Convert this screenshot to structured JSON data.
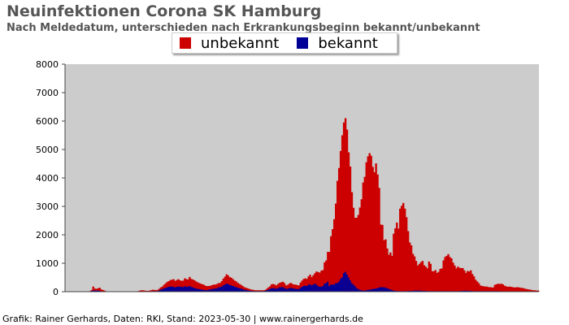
{
  "title": "Neuinfektionen Corona SK Hamburg",
  "subtitle": "Nach Meldedatum, unterschieden nach Erkrankungsbeginn bekannt/unbekannt",
  "credit": "Grafik: Rainer Gerhards, Daten: RKI, Stand: 2023-05-30 | www.rainergerhards.de",
  "legend": {
    "unknown_label": "unbekannt",
    "known_label": "bekannt"
  },
  "colors": {
    "unknown": "#cc0000",
    "known": "#000099",
    "plot_bg": "#cccccc"
  },
  "chart_data": {
    "type": "bar",
    "stacked": true,
    "title": "Neuinfektionen Corona SK Hamburg",
    "subtitle": "Nach Meldedatum, unterschieden nach Erkrankungsbeginn bekannt/unbekannt",
    "ylim": [
      0,
      8000
    ],
    "y_ticks": [
      0,
      1000,
      2000,
      3000,
      4000,
      5000,
      6000,
      7000,
      8000
    ],
    "grid": false,
    "legend_position": "top-center",
    "series": [
      {
        "name": "unbekannt",
        "color": "#cc0000",
        "values": [
          0,
          0,
          0,
          0,
          0,
          0,
          0,
          0,
          0,
          0,
          0,
          0,
          0,
          0,
          0,
          10,
          30,
          140,
          70,
          60,
          80,
          110,
          60,
          50,
          30,
          10,
          5,
          5,
          0,
          0,
          0,
          0,
          0,
          0,
          0,
          0,
          0,
          0,
          0,
          0,
          0,
          0,
          0,
          0,
          5,
          10,
          30,
          40,
          40,
          30,
          20,
          20,
          30,
          40,
          50,
          40,
          40,
          40,
          60,
          80,
          90,
          130,
          160,
          190,
          200,
          230,
          240,
          270,
          230,
          240,
          260,
          220,
          210,
          230,
          280,
          260,
          260,
          320,
          280,
          280,
          270,
          250,
          230,
          210,
          200,
          190,
          180,
          150,
          140,
          130,
          130,
          140,
          150,
          140,
          150,
          150,
          150,
          190,
          240,
          280,
          330,
          300,
          270,
          270,
          240,
          210,
          200,
          170,
          150,
          130,
          110,
          90,
          80,
          70,
          60,
          50,
          40,
          40,
          30,
          30,
          30,
          30,
          30,
          30,
          30,
          50,
          80,
          100,
          140,
          150,
          130,
          120,
          150,
          160,
          170,
          190,
          170,
          120,
          140,
          160,
          170,
          150,
          140,
          150,
          140,
          130,
          190,
          220,
          250,
          260,
          250,
          300,
          340,
          290,
          330,
          370,
          460,
          490,
          500,
          560,
          560,
          750,
          800,
          1050,
          1200,
          1700,
          1950,
          2300,
          2800,
          3600,
          4000,
          4500,
          5000,
          5300,
          5400,
          5100,
          4400,
          4000,
          3200,
          2700,
          2400,
          2480,
          2600,
          2900,
          3200,
          3800,
          4000,
          4500,
          4700,
          4800,
          4700,
          4300,
          4100,
          4400,
          4000,
          3500,
          2200,
          2200,
          1650,
          1700,
          1400,
          1200,
          1300,
          1200,
          2000,
          2200,
          2400,
          2200,
          2900,
          3000,
          3100,
          2900,
          2600,
          2100,
          1700,
          1600,
          1300,
          1200,
          1040,
          880,
          940,
          1000,
          1050,
          900,
          850,
          800,
          1040,
          960,
          700,
          700,
          740,
          640,
          680,
          780,
          800,
          1080,
          1200,
          1240,
          1300,
          1200,
          1150,
          1000,
          900,
          800,
          860,
          820,
          800,
          800,
          720,
          620,
          700,
          680,
          720,
          600,
          520,
          400,
          340,
          280,
          200,
          180,
          170,
          160,
          160,
          140,
          140,
          130,
          130,
          220,
          240,
          260,
          260,
          270,
          250,
          200,
          180,
          160,
          170,
          160,
          150,
          140,
          140,
          150,
          140,
          130,
          120,
          110,
          90,
          80,
          70,
          60,
          50,
          40,
          40,
          30,
          30
        ]
      },
      {
        "name": "bekannt",
        "color": "#000099",
        "values": [
          0,
          0,
          0,
          0,
          0,
          0,
          0,
          0,
          0,
          0,
          0,
          0,
          0,
          0,
          0,
          10,
          30,
          40,
          40,
          40,
          40,
          30,
          20,
          10,
          10,
          5,
          5,
          0,
          0,
          0,
          0,
          0,
          0,
          0,
          0,
          0,
          0,
          0,
          0,
          0,
          0,
          0,
          0,
          0,
          5,
          10,
          10,
          10,
          10,
          10,
          10,
          10,
          10,
          10,
          20,
          20,
          20,
          20,
          40,
          70,
          90,
          110,
          130,
          150,
          170,
          180,
          180,
          170,
          150,
          170,
          180,
          180,
          170,
          160,
          190,
          180,
          170,
          200,
          170,
          150,
          130,
          110,
          100,
          90,
          80,
          70,
          60,
          50,
          60,
          70,
          80,
          90,
          100,
          110,
          120,
          150,
          160,
          180,
          220,
          250,
          280,
          270,
          240,
          220,
          200,
          180,
          160,
          140,
          120,
          110,
          90,
          70,
          60,
          50,
          40,
          30,
          30,
          20,
          20,
          20,
          20,
          20,
          20,
          20,
          30,
          50,
          70,
          90,
          120,
          120,
          120,
          100,
          120,
          150,
          160,
          160,
          130,
          100,
          100,
          120,
          140,
          120,
          110,
          100,
          90,
          90,
          130,
          170,
          200,
          210,
          200,
          240,
          260,
          220,
          250,
          280,
          250,
          200,
          170,
          180,
          200,
          280,
          300,
          350,
          200,
          250,
          250,
          250,
          300,
          300,
          350,
          450,
          500,
          650,
          700,
          600,
          500,
          400,
          300,
          250,
          200,
          120,
          100,
          60,
          50,
          40,
          40,
          50,
          60,
          70,
          80,
          90,
          100,
          110,
          120,
          150,
          160,
          150,
          160,
          140,
          120,
          100,
          80,
          60,
          40,
          30,
          30,
          20,
          20,
          20,
          20,
          20,
          20,
          30,
          30,
          30,
          30,
          40,
          40,
          40,
          40,
          40,
          30,
          30,
          30,
          20,
          20,
          20,
          20,
          20,
          20,
          20,
          20,
          20,
          20,
          20,
          20,
          20,
          20,
          20,
          20,
          20,
          20,
          20,
          20,
          20,
          30,
          30,
          30,
          40,
          30,
          30,
          30,
          20,
          20,
          20,
          20,
          20,
          20,
          20,
          20,
          20,
          20,
          20,
          20,
          20,
          20,
          20,
          20,
          20,
          10,
          10,
          10,
          10,
          10,
          10,
          10,
          10,
          10,
          10,
          10,
          10,
          10,
          10,
          10,
          10,
          10,
          10,
          10,
          10,
          10,
          10,
          10,
          10,
          10,
          10,
          10,
          10,
          10,
          10,
          10,
          10,
          10,
          10,
          10,
          10,
          10,
          10,
          10,
          10,
          10,
          10,
          10,
          10,
          10,
          10
        ]
      }
    ]
  }
}
